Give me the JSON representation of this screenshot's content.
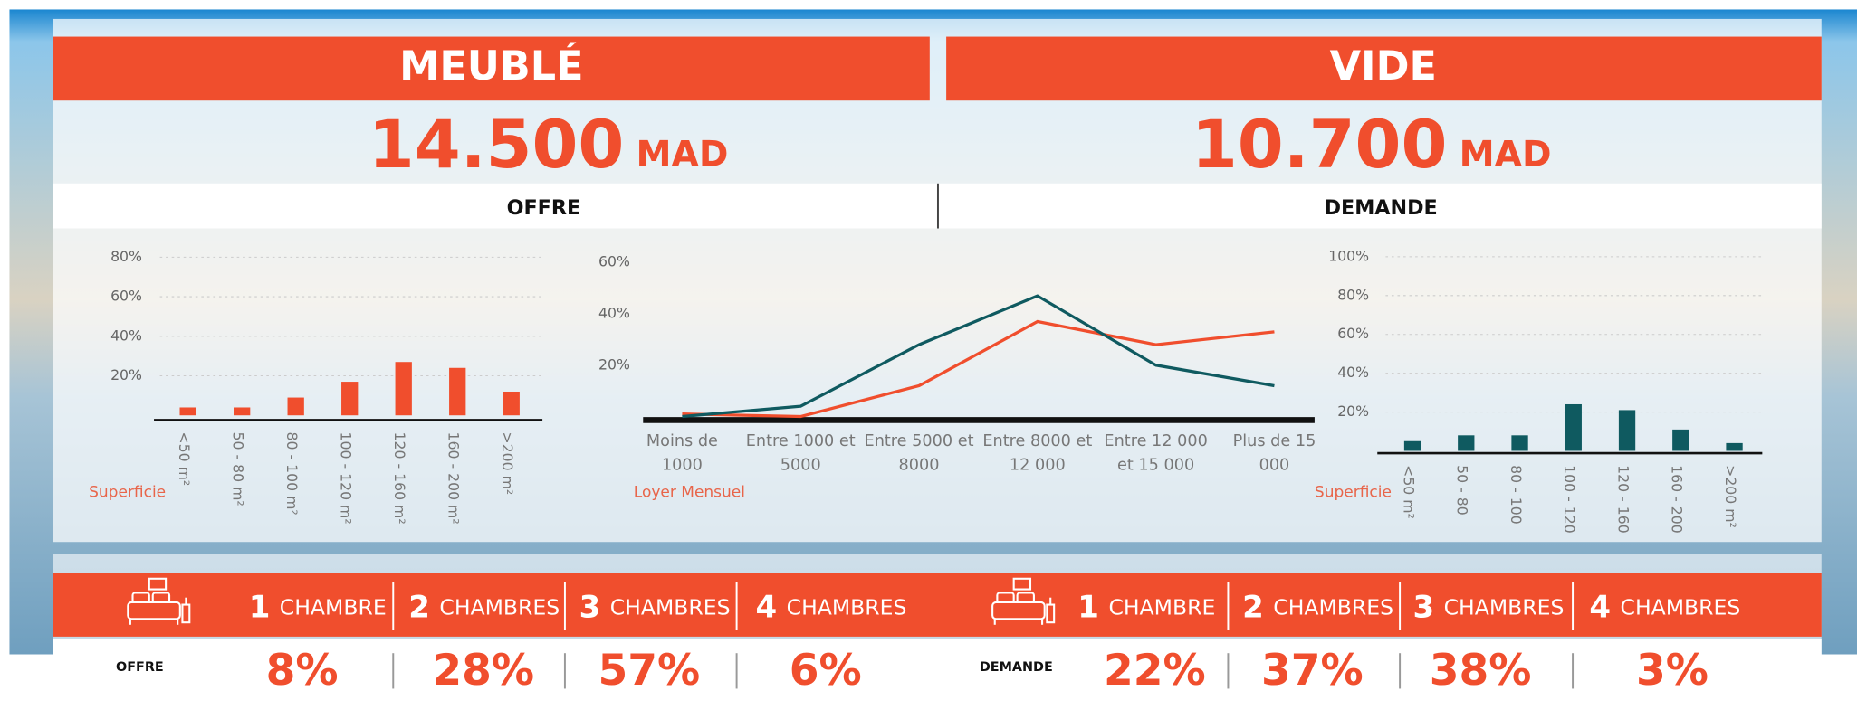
{
  "header": {
    "panels": [
      {
        "title": "MEUBLÉ",
        "price": "14.500",
        "unit": "MAD"
      },
      {
        "title": "VIDE",
        "price": "10.700",
        "unit": "MAD"
      }
    ],
    "tabs": [
      "OFFRE",
      "DEMANDE"
    ]
  },
  "chart_data": [
    {
      "type": "bar",
      "x_label": "Superficie",
      "color": "#f04e2d",
      "categories": [
        "<50 m²",
        "50 - 80 m²",
        "80 - 100 m²",
        "100 - 120 m²",
        "120 - 160 m²",
        "160 - 200 m²",
        ">200 m²"
      ],
      "values": [
        4,
        4,
        9,
        17,
        27,
        24,
        12
      ],
      "ylim": [
        0,
        85
      ],
      "yticks": [
        {
          "value": 20,
          "label": "20%"
        },
        {
          "value": 40,
          "label": "40%"
        },
        {
          "value": 60,
          "label": "60%"
        },
        {
          "value": 80,
          "label": "80%"
        }
      ],
      "grid": true
    },
    {
      "type": "line",
      "x_label": "Loyer Mensuel",
      "categories": [
        "Moins de 1000",
        "Entre 1000 et 5000",
        "Entre 5000 et 8000",
        "Entre 8000 et 12 000",
        "Entre 12 000 et 15 000",
        "Plus de 15 000"
      ],
      "series": [
        {
          "color": "#f04e2d",
          "values": [
            1,
            0,
            12,
            37,
            28,
            33
          ]
        },
        {
          "color": "#0f5a60",
          "values": [
            0,
            4,
            28,
            47,
            20,
            12
          ]
        }
      ],
      "ylim": [
        0,
        65
      ],
      "yticks": [
        {
          "value": 20,
          "label": "20%"
        },
        {
          "value": 40,
          "label": "40%"
        },
        {
          "value": 60,
          "label": "60%"
        }
      ],
      "grid": false
    },
    {
      "type": "bar",
      "x_label": "Superficie",
      "color": "#0f5a60",
      "categories": [
        "<50 m²",
        "50 - 80",
        "80 - 100",
        "100 - 120",
        "120 - 160",
        "160 - 200",
        ">200 m²"
      ],
      "values": [
        5,
        8,
        8,
        24,
        21,
        11,
        4
      ],
      "ylim": [
        0,
        100
      ],
      "yticks": [
        {
          "value": 20,
          "label": "20%"
        },
        {
          "value": 40,
          "label": "40%"
        },
        {
          "value": 60,
          "label": "60%"
        },
        {
          "value": 80,
          "label": "80%"
        },
        {
          "value": 100,
          "label": "100%"
        }
      ],
      "grid": true
    }
  ],
  "rooms": [
    {
      "items": [
        {
          "count": "1",
          "label": "CHAMBRE"
        },
        {
          "count": "2",
          "label": "CHAMBRES"
        },
        {
          "count": "3",
          "label": "CHAMBRES"
        },
        {
          "count": "4",
          "label": "CHAMBRES"
        }
      ],
      "row_label": "OFFRE",
      "values": [
        "8%",
        "28%",
        "57%",
        "6%"
      ]
    },
    {
      "items": [
        {
          "count": "1",
          "label": "CHAMBRE"
        },
        {
          "count": "2",
          "label": "CHAMBRES"
        },
        {
          "count": "3",
          "label": "CHAMBRES"
        },
        {
          "count": "4",
          "label": "CHAMBRES"
        }
      ],
      "row_label": "DEMANDE",
      "values": [
        "22%",
        "37%",
        "38%",
        "3%"
      ]
    }
  ]
}
